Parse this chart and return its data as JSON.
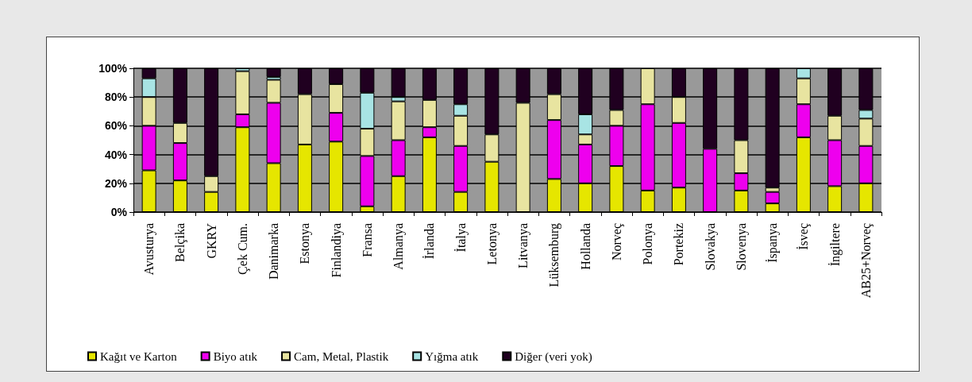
{
  "chart_data": {
    "type": "bar",
    "stacked": true,
    "categories": [
      "Avusturya",
      "Belçika",
      "GKRY",
      "Çek Cum.",
      "Danimarka",
      "Estonya",
      "Finlandiya",
      "Fransa",
      "Almanya",
      "İrlanda",
      "İtalya",
      "Letonya",
      "Litvanya",
      "Lüksemburg",
      "Hollanda",
      "Norveç",
      "Polonya",
      "Portekiz",
      "Slovakya",
      "Slovenya",
      "İspanya",
      "İsveç",
      "İngiltere",
      "AB25+Norveç"
    ],
    "series": [
      {
        "name": "Kağıt ve Karton",
        "color": "#e6e600",
        "values": [
          29,
          22,
          14,
          59,
          34,
          47,
          49,
          4,
          25,
          52,
          14,
          35,
          0,
          23,
          20,
          32,
          15,
          17,
          0,
          15,
          6,
          52,
          18,
          20
        ]
      },
      {
        "name": "Biyo atık",
        "color": "#ee00ee",
        "values": [
          31,
          26,
          0,
          9,
          42,
          0,
          20,
          35,
          25,
          7,
          32,
          0,
          0,
          41,
          27,
          28,
          60,
          45,
          44,
          12,
          8,
          23,
          32,
          26
        ]
      },
      {
        "name": "Cam, Metal, Plastik",
        "color": "#e8e4a0",
        "values": [
          20,
          14,
          11,
          30,
          16,
          35,
          20,
          19,
          27,
          19,
          21,
          19,
          76,
          18,
          7,
          11,
          25,
          18,
          0,
          23,
          3,
          18,
          17,
          19
        ]
      },
      {
        "name": "Yığma atık",
        "color": "#a8e4e4",
        "values": [
          13,
          0,
          0,
          2,
          2,
          0,
          0,
          25,
          3,
          0,
          8,
          0,
          0,
          0,
          14,
          0,
          0,
          0,
          0,
          0,
          0,
          7,
          0,
          6
        ]
      },
      {
        "name": "Diğer (veri yok)",
        "color": "#200020",
        "values": [
          7,
          38,
          75,
          0,
          6,
          18,
          11,
          17,
          20,
          22,
          25,
          46,
          24,
          18,
          32,
          29,
          0,
          20,
          56,
          50,
          83,
          0,
          33,
          29
        ]
      }
    ],
    "ylim": [
      0,
      100
    ],
    "yticks": [
      {
        "value": 0,
        "label": "0%"
      },
      {
        "value": 20,
        "label": "20%"
      },
      {
        "value": 40,
        "label": "40%"
      },
      {
        "value": 60,
        "label": "60%"
      },
      {
        "value": 80,
        "label": "80%"
      },
      {
        "value": 100,
        "label": "100%"
      }
    ],
    "grid": "y",
    "legend": "bottom"
  }
}
